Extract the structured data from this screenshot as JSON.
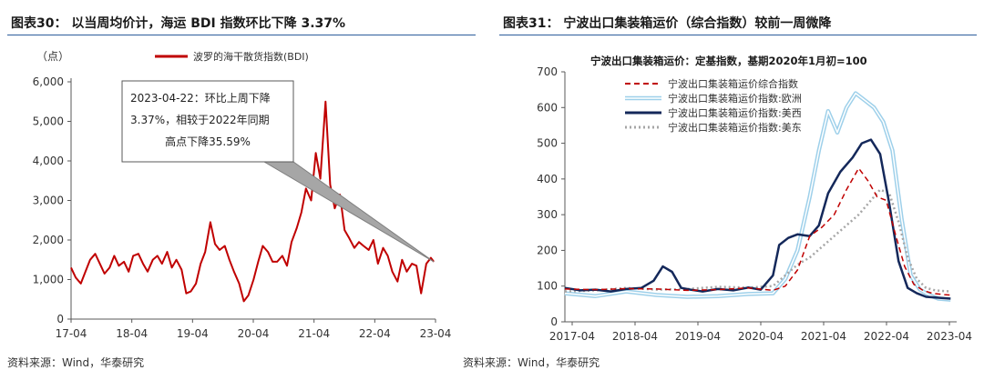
{
  "left": {
    "figure_title": "图表30：  以当周均价计，海运 BDI 指数环比下降 3.37%",
    "source": "资料来源：Wind，华泰研究",
    "unit_label": "（点）",
    "annotation_lines": [
      "2023-04-22：环比上周下降",
      "3.37%，相较于2022年同期",
      "高点下降35.59%"
    ],
    "line_color": "#c00000"
  },
  "right": {
    "figure_title": "图表31：  宁波出口集装箱运价（综合指数）较前一周微降",
    "source": "资料来源：Wind，华泰研究",
    "chart_title": "宁波出口集装箱运价：定基指数，基期2020年1月初=100",
    "colors": {
      "composite": "#c00000",
      "europe": "#9ed0ea",
      "us_west": "#14285a",
      "us_east": "#a6a6a6"
    }
  },
  "chart_data": [
    {
      "type": "line",
      "title": "",
      "xlabel": "",
      "ylabel": "（点）",
      "x_ticks": [
        "17-04",
        "18-04",
        "19-04",
        "20-04",
        "21-04",
        "22-04",
        "23-04"
      ],
      "x_range": [
        2017.0,
        2023.33
      ],
      "ylim": [
        0,
        6000
      ],
      "y_ticks": [
        "0",
        "1,000",
        "2,000",
        "3,000",
        "4,000",
        "5,000",
        "6,000"
      ],
      "y_tick_values": [
        0,
        1000,
        2000,
        3000,
        4000,
        5000,
        6000
      ],
      "grid": false,
      "legend_position": "top-center",
      "series": [
        {
          "name": "波罗的海干散货指数(BDI)",
          "x": [
            2017.0,
            2017.08,
            2017.17,
            2017.25,
            2017.33,
            2017.42,
            2017.5,
            2017.58,
            2017.67,
            2017.75,
            2017.83,
            2017.92,
            2018.0,
            2018.08,
            2018.17,
            2018.25,
            2018.33,
            2018.42,
            2018.5,
            2018.58,
            2018.67,
            2018.75,
            2018.83,
            2018.92,
            2019.0,
            2019.08,
            2019.17,
            2019.25,
            2019.33,
            2019.42,
            2019.5,
            2019.58,
            2019.67,
            2019.75,
            2019.83,
            2019.92,
            2020.0,
            2020.08,
            2020.17,
            2020.25,
            2020.33,
            2020.42,
            2020.5,
            2020.58,
            2020.67,
            2020.75,
            2020.83,
            2020.92,
            2021.0,
            2021.08,
            2021.17,
            2021.25,
            2021.33,
            2021.42,
            2021.5,
            2021.58,
            2021.67,
            2021.75,
            2021.83,
            2021.92,
            2022.0,
            2022.08,
            2022.17,
            2022.25,
            2022.33,
            2022.42,
            2022.5,
            2022.58,
            2022.67,
            2022.75,
            2022.83,
            2022.92,
            2023.0,
            2023.08,
            2023.17,
            2023.25,
            2023.3
          ],
          "values": [
            1300,
            1050,
            900,
            1200,
            1500,
            1650,
            1400,
            1150,
            1300,
            1600,
            1350,
            1450,
            1200,
            1600,
            1650,
            1400,
            1200,
            1500,
            1600,
            1400,
            1700,
            1300,
            1500,
            1250,
            650,
            700,
            900,
            1400,
            1700,
            2450,
            1900,
            1750,
            1850,
            1500,
            1200,
            900,
            450,
            600,
            1000,
            1450,
            1850,
            1700,
            1450,
            1450,
            1600,
            1350,
            1950,
            2300,
            2700,
            3300,
            3000,
            4200,
            3550,
            5500,
            3400,
            2800,
            3150,
            2250,
            2050,
            1800,
            1950,
            1850,
            1750,
            2000,
            1400,
            1800,
            1600,
            1200,
            950,
            1500,
            1200,
            1400,
            1350,
            650,
            1400,
            1550,
            1450
          ]
        }
      ],
      "annotation": "2023-04-22：环比上周下降3.37%，相较于2022年同期高点下降35.59%"
    },
    {
      "type": "line",
      "title": "宁波出口集装箱运价：定基指数，基期2020年1月初=100",
      "xlabel": "",
      "ylabel": "",
      "x_ticks": [
        "2017-04",
        "2018-04",
        "2019-04",
        "2020-04",
        "2021-04",
        "2022-04",
        "2023-04"
      ],
      "x_range": [
        2017.0,
        2023.4
      ],
      "ylim": [
        0,
        700
      ],
      "y_ticks": [
        "0",
        "100",
        "200",
        "300",
        "400",
        "500",
        "600",
        "700"
      ],
      "y_tick_values": [
        0,
        100,
        200,
        300,
        400,
        500,
        600,
        700
      ],
      "grid": false,
      "legend_position": "top-right",
      "series": [
        {
          "name": "宁波出口集装箱运价综合指数",
          "key": "composite",
          "x": [
            2017.0,
            2017.5,
            2018.0,
            2018.5,
            2019.0,
            2019.5,
            2020.0,
            2020.4,
            2020.6,
            2020.8,
            2021.0,
            2021.2,
            2021.4,
            2021.6,
            2021.8,
            2021.95,
            2022.1,
            2022.25,
            2022.4,
            2022.55,
            2022.7,
            2022.85,
            2023.0,
            2023.2,
            2023.3
          ],
          "values": [
            92,
            90,
            93,
            92,
            88,
            90,
            95,
            88,
            100,
            145,
            240,
            265,
            300,
            370,
            430,
            395,
            350,
            340,
            245,
            155,
            105,
            88,
            80,
            76,
            75
          ]
        },
        {
          "name": "宁波出口集装箱运价指数:欧洲",
          "key": "europe",
          "x": [
            2017.0,
            2017.5,
            2018.0,
            2018.5,
            2019.0,
            2019.5,
            2020.0,
            2020.4,
            2020.6,
            2020.8,
            2021.0,
            2021.15,
            2021.3,
            2021.45,
            2021.6,
            2021.75,
            2021.9,
            2022.05,
            2022.2,
            2022.35,
            2022.5,
            2022.65,
            2022.8,
            2022.95,
            2023.1,
            2023.3
          ],
          "values": [
            80,
            72,
            85,
            75,
            70,
            72,
            78,
            80,
            120,
            200,
            350,
            480,
            590,
            530,
            600,
            640,
            620,
            600,
            560,
            480,
            290,
            130,
            90,
            75,
            65,
            62
          ]
        },
        {
          "name": "宁波出口集装箱运价指数:美西",
          "key": "us_west",
          "x": [
            2017.0,
            2017.25,
            2017.5,
            2017.75,
            2018.0,
            2018.25,
            2018.45,
            2018.6,
            2018.75,
            2018.9,
            2019.05,
            2019.25,
            2019.5,
            2019.75,
            2020.0,
            2020.2,
            2020.4,
            2020.5,
            2020.65,
            2020.8,
            2021.0,
            2021.15,
            2021.3,
            2021.5,
            2021.7,
            2021.85,
            2022.0,
            2022.15,
            2022.3,
            2022.45,
            2022.6,
            2022.75,
            2022.9,
            2023.05,
            2023.3
          ],
          "values": [
            95,
            88,
            90,
            85,
            92,
            95,
            115,
            155,
            140,
            95,
            90,
            85,
            92,
            88,
            96,
            90,
            130,
            215,
            235,
            245,
            240,
            270,
            360,
            420,
            460,
            500,
            510,
            470,
            330,
            170,
            95,
            80,
            70,
            68,
            65
          ]
        },
        {
          "name": "宁波出口集装箱运价指数:美东",
          "key": "us_east",
          "x": [
            2017.0,
            2017.5,
            2018.0,
            2018.5,
            2019.0,
            2019.5,
            2020.0,
            2020.4,
            2020.6,
            2020.8,
            2021.0,
            2021.2,
            2021.4,
            2021.6,
            2021.8,
            2022.0,
            2022.15,
            2022.3,
            2022.45,
            2022.6,
            2022.75,
            2022.9,
            2023.05,
            2023.3
          ],
          "values": [
            85,
            88,
            95,
            90,
            92,
            98,
            96,
            100,
            130,
            160,
            180,
            210,
            240,
            270,
            300,
            340,
            370,
            360,
            280,
            180,
            120,
            95,
            88,
            85
          ]
        }
      ]
    }
  ]
}
